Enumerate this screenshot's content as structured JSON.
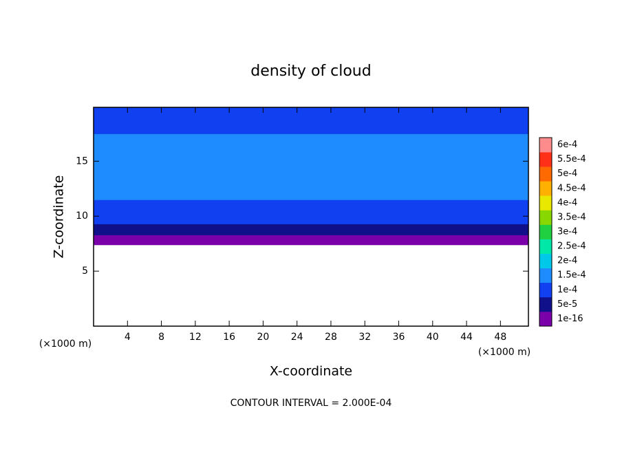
{
  "chart_data": {
    "type": "contour",
    "title": "density of cloud",
    "x_label": "X-coordinate",
    "y_label": "Z-coordinate",
    "x_unit_label": "(×1000 m)",
    "y_unit_label": "(×1000 m)",
    "footer": "CONTOUR INTERVAL = 2.000E-04",
    "xlim": [
      0,
      51.3
    ],
    "ylim": [
      0,
      19.9
    ],
    "xticks": [
      4,
      8,
      12,
      16,
      20,
      24,
      28,
      32,
      36,
      40,
      44,
      48
    ],
    "yticks": [
      5,
      10,
      15
    ],
    "field": {
      "z": [
        7.4,
        8.3,
        9.3,
        11.5,
        17.5,
        19.9
      ],
      "values": [
        2e-05,
        6e-05,
        0.00011,
        0.00016,
        0.00012
      ]
    },
    "colorbar": {
      "levels": [
        {
          "value": 1e-16,
          "label": "1e-16"
        },
        {
          "value": 5e-05,
          "label": "5e-5"
        },
        {
          "value": 0.0001,
          "label": "1e-4"
        },
        {
          "value": 0.00015,
          "label": "1.5e-4"
        },
        {
          "value": 0.0002,
          "label": "2e-4"
        },
        {
          "value": 0.00025,
          "label": "2.5e-4"
        },
        {
          "value": 0.0003,
          "label": "3e-4"
        },
        {
          "value": 0.00035,
          "label": "3.5e-4"
        },
        {
          "value": 0.0004,
          "label": "4e-4"
        },
        {
          "value": 0.00045,
          "label": "4.5e-4"
        },
        {
          "value": 0.0005,
          "label": "5e-4"
        },
        {
          "value": 0.00055,
          "label": "5.5e-4"
        },
        {
          "value": 0.0006,
          "label": "6e-4"
        }
      ],
      "colors": [
        "#7a00aa",
        "#10108a",
        "#1040f0",
        "#1e8cff",
        "#00c8e8",
        "#00e8a8",
        "#20d040",
        "#88d800",
        "#e8e800",
        "#ffb000",
        "#ff6a00",
        "#ff3018",
        "#ff8c8c"
      ]
    }
  }
}
